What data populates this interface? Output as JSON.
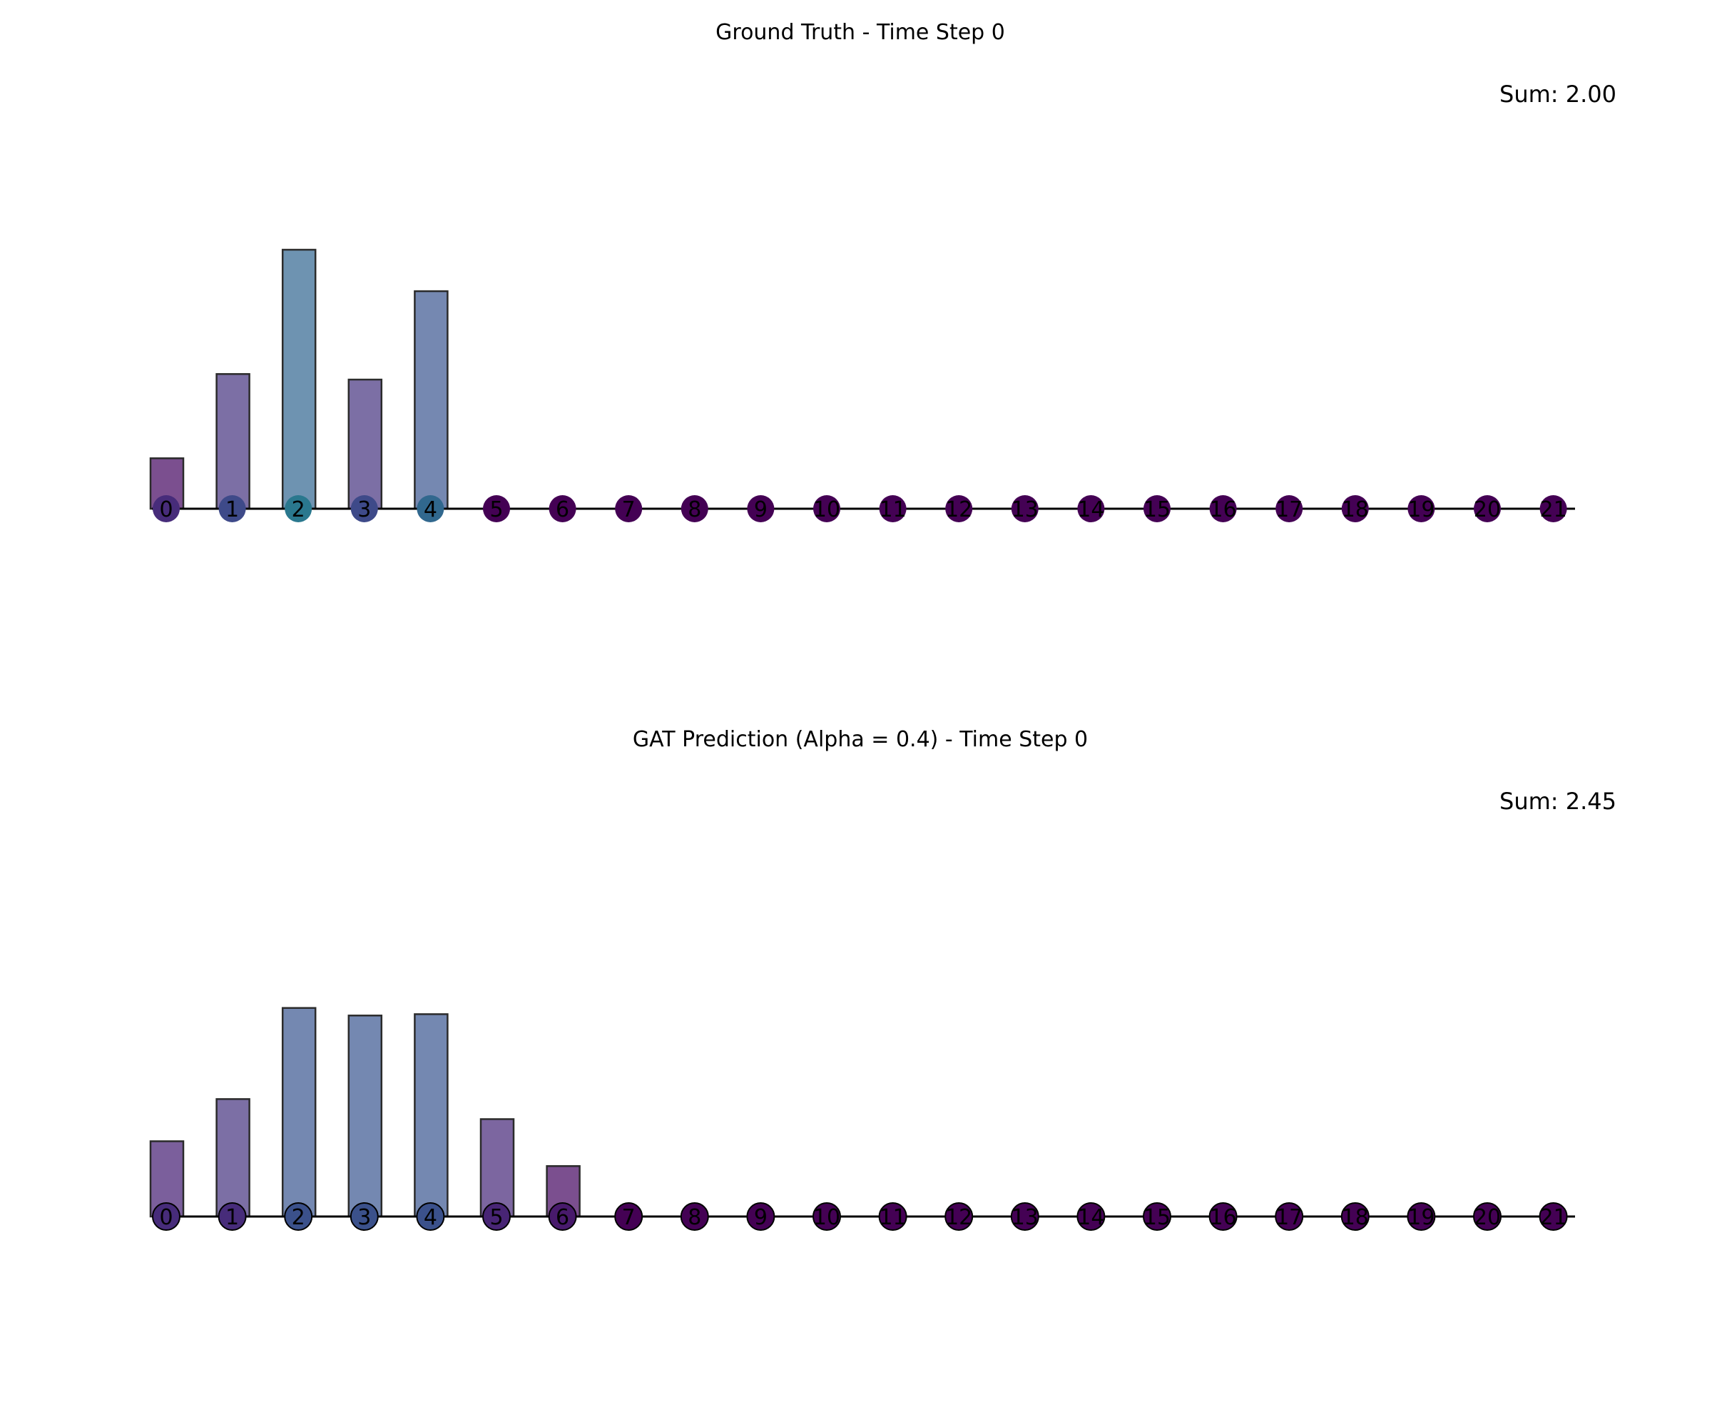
{
  "chart_data": [
    {
      "type": "bar",
      "title": "Ground Truth - Time Step 0",
      "sum_label": "Sum: 2.00",
      "categories": [
        "0",
        "1",
        "2",
        "3",
        "4",
        "5",
        "6",
        "7",
        "8",
        "9",
        "10",
        "11",
        "12",
        "13",
        "14",
        "15",
        "16",
        "17",
        "18",
        "19",
        "20",
        "21"
      ],
      "values": [
        0.073,
        0.195,
        0.375,
        0.187,
        0.315,
        0,
        0,
        0,
        0,
        0,
        0,
        0,
        0,
        0,
        0,
        0,
        0,
        0,
        0,
        0,
        0,
        0
      ],
      "node_colors": [
        "#472c7a",
        "#3e4a89",
        "#2a788e",
        "#3e4a89",
        "#31688e",
        "#440154",
        "#440154",
        "#440154",
        "#440154",
        "#440154",
        "#440154",
        "#440154",
        "#440154",
        "#440154",
        "#440154",
        "#440154",
        "#440154",
        "#440154",
        "#440154",
        "#440154",
        "#440154",
        "#440154"
      ],
      "bar_colors": [
        "#7b4f8f",
        "#7c6fa5",
        "#6e93b1",
        "#7c6fa5",
        "#7588b1",
        "#7b4f8f",
        "#7b4f8f",
        "#7b4f8f",
        "#7b4f8f",
        "#7b4f8f",
        "#7b4f8f",
        "#7b4f8f",
        "#7b4f8f",
        "#7b4f8f",
        "#7b4f8f",
        "#7b4f8f",
        "#7b4f8f",
        "#7b4f8f",
        "#7b4f8f",
        "#7b4f8f",
        "#7b4f8f",
        "#7b4f8f"
      ],
      "node_outline": false,
      "ylim": [
        0,
        0.5
      ],
      "grid": false,
      "axes": "off"
    },
    {
      "type": "bar",
      "title": "GAT Prediction (Alpha = 0.4) - Time Step 0",
      "sum_label": "Sum: 2.45",
      "categories": [
        "0",
        "1",
        "2",
        "3",
        "4",
        "5",
        "6",
        "7",
        "8",
        "9",
        "10",
        "11",
        "12",
        "13",
        "14",
        "15",
        "16",
        "17",
        "18",
        "19",
        "20",
        "21"
      ],
      "values": [
        0.109,
        0.17,
        0.302,
        0.291,
        0.293,
        0.141,
        0.073,
        0,
        0,
        0,
        0,
        0,
        0,
        0,
        0,
        0,
        0,
        0,
        0,
        0,
        0,
        0
      ],
      "node_colors": [
        "#472c7a",
        "#472c7a",
        "#3b518b",
        "#3b518b",
        "#3b518b",
        "#482575",
        "#481a6c",
        "#440154",
        "#440154",
        "#440154",
        "#440154",
        "#440154",
        "#440154",
        "#440154",
        "#440154",
        "#440154",
        "#440154",
        "#440154",
        "#440154",
        "#440154",
        "#440154",
        "#440154"
      ],
      "bar_colors": [
        "#7b5f9c",
        "#7c6fa5",
        "#7488b1",
        "#7488b1",
        "#7488b1",
        "#7c66a0",
        "#7b4f8f",
        "#7b4f8f",
        "#7b4f8f",
        "#7b4f8f",
        "#7b4f8f",
        "#7b4f8f",
        "#7b4f8f",
        "#7b4f8f",
        "#7b4f8f",
        "#7b4f8f",
        "#7b4f8f",
        "#7b4f8f",
        "#7b4f8f",
        "#7b4f8f",
        "#7b4f8f",
        "#7b4f8f"
      ],
      "node_outline": true,
      "ylim": [
        0,
        0.5
      ],
      "grid": false,
      "axes": "off"
    }
  ]
}
